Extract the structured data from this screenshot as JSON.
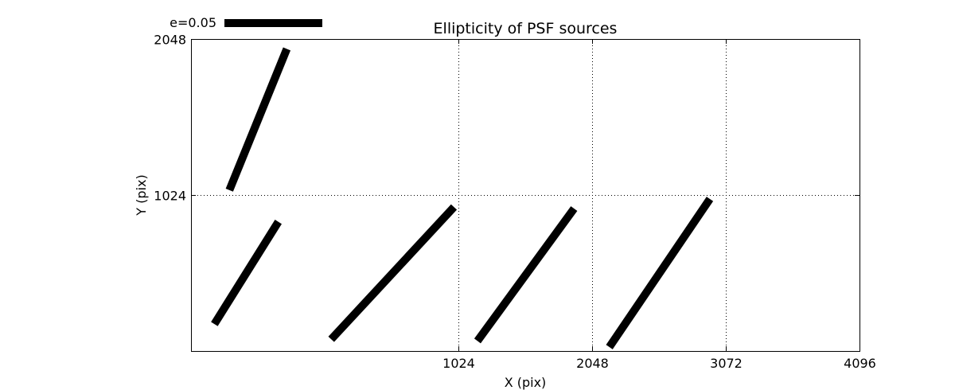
{
  "chart_data": {
    "type": "quiver",
    "title": "Ellipticity of PSF sources",
    "xlabel": "X (pix)",
    "ylabel": "Y (pix)",
    "xlim": [
      -1024,
      4096
    ],
    "ylim": [
      0,
      2048
    ],
    "xticks": [
      1024,
      2048,
      3072,
      4096
    ],
    "xtick_labels": [
      "1024",
      "2048",
      "3072",
      "4096"
    ],
    "yticks": [
      1024,
      2048
    ],
    "ytick_labels": [
      "1024",
      "2048"
    ],
    "grid": true,
    "grid_style": "dotted",
    "scale_bar": {
      "label": "e=0.05",
      "value": 0.05
    },
    "series": [
      {
        "segments": [
          {
            "x0": -730,
            "y0": 1056,
            "x1": -290,
            "y1": 1983
          },
          {
            "x0": -845,
            "y0": 177,
            "x1": -355,
            "y1": 848
          },
          {
            "x0": 50,
            "y0": 77,
            "x1": 990,
            "y1": 945
          },
          {
            "x0": 1170,
            "y0": 66,
            "x1": 1910,
            "y1": 935
          },
          {
            "x0": 2180,
            "y0": 26,
            "x1": 2950,
            "y1": 998
          }
        ]
      }
    ],
    "colors": {
      "vector": "#000000",
      "grid": "#000000",
      "frame": "#000000",
      "background": "#ffffff"
    }
  }
}
